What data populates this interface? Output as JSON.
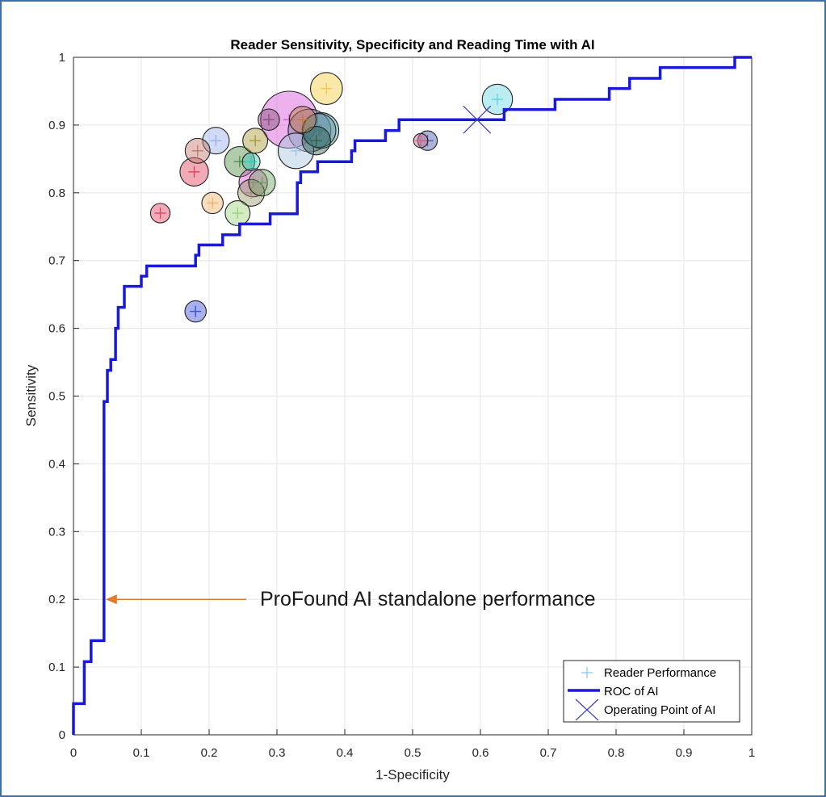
{
  "chart_data": {
    "type": "scatter",
    "title": "Reader Sensitivity, Specificity and Reading Time with AI",
    "xlabel": "1-Specificity",
    "ylabel": "Sensitivity",
    "xlim": [
      0,
      1
    ],
    "ylim": [
      0,
      1
    ],
    "xticks": [
      "0",
      "0.1",
      "0.2",
      "0.3",
      "0.4",
      "0.5",
      "0.6",
      "0.7",
      "0.8",
      "0.9",
      "1"
    ],
    "yticks": [
      "0",
      "0.1",
      "0.2",
      "0.3",
      "0.4",
      "0.5",
      "0.6",
      "0.7",
      "0.8",
      "0.9",
      "1"
    ],
    "grid": true,
    "legend": {
      "position": "bottom-right",
      "entries": [
        "Reader Performance",
        "ROC of AI",
        "Operating Point of AI"
      ]
    },
    "annotation": {
      "text": "ProFound AI standalone performance",
      "arrow_to": [
        0.045,
        0.2
      ],
      "color": "#e07b2b"
    },
    "roc_color": "#1919d9",
    "roc": [
      [
        0,
        0
      ],
      [
        0,
        0.046
      ],
      [
        0.016,
        0.046
      ],
      [
        0.016,
        0.108
      ],
      [
        0.026,
        0.108
      ],
      [
        0.026,
        0.139
      ],
      [
        0.045,
        0.139
      ],
      [
        0.045,
        0.492
      ],
      [
        0.05,
        0.492
      ],
      [
        0.05,
        0.538
      ],
      [
        0.055,
        0.538
      ],
      [
        0.055,
        0.554
      ],
      [
        0.062,
        0.554
      ],
      [
        0.062,
        0.6
      ],
      [
        0.066,
        0.6
      ],
      [
        0.066,
        0.631
      ],
      [
        0.075,
        0.631
      ],
      [
        0.075,
        0.662
      ],
      [
        0.1,
        0.662
      ],
      [
        0.1,
        0.677
      ],
      [
        0.108,
        0.677
      ],
      [
        0.108,
        0.692
      ],
      [
        0.18,
        0.692
      ],
      [
        0.18,
        0.708
      ],
      [
        0.185,
        0.708
      ],
      [
        0.185,
        0.723
      ],
      [
        0.22,
        0.723
      ],
      [
        0.22,
        0.738
      ],
      [
        0.245,
        0.738
      ],
      [
        0.245,
        0.754
      ],
      [
        0.29,
        0.754
      ],
      [
        0.29,
        0.769
      ],
      [
        0.33,
        0.769
      ],
      [
        0.33,
        0.815
      ],
      [
        0.335,
        0.815
      ],
      [
        0.335,
        0.831
      ],
      [
        0.36,
        0.831
      ],
      [
        0.36,
        0.846
      ],
      [
        0.41,
        0.846
      ],
      [
        0.41,
        0.862
      ],
      [
        0.415,
        0.862
      ],
      [
        0.415,
        0.877
      ],
      [
        0.46,
        0.877
      ],
      [
        0.46,
        0.892
      ],
      [
        0.48,
        0.892
      ],
      [
        0.48,
        0.908
      ],
      [
        0.635,
        0.908
      ],
      [
        0.635,
        0.923
      ],
      [
        0.71,
        0.923
      ],
      [
        0.71,
        0.938
      ],
      [
        0.79,
        0.938
      ],
      [
        0.79,
        0.954
      ],
      [
        0.82,
        0.954
      ],
      [
        0.82,
        0.969
      ],
      [
        0.865,
        0.969
      ],
      [
        0.865,
        0.985
      ],
      [
        0.975,
        0.985
      ],
      [
        0.975,
        1.0
      ],
      [
        1.0,
        1.0
      ]
    ],
    "operating_point": {
      "x": 0.595,
      "y": 0.908
    },
    "readers": [
      {
        "x": 0.128,
        "y": 0.77,
        "size": 1.1,
        "color": "#e3435f"
      },
      {
        "x": 0.18,
        "y": 0.625,
        "size": 1.2,
        "color": "#3d4fd6"
      },
      {
        "x": 0.178,
        "y": 0.831,
        "size": 1.6,
        "color": "#e3435f"
      },
      {
        "x": 0.183,
        "y": 0.862,
        "size": 1.4,
        "color": "#c07a6a"
      },
      {
        "x": 0.205,
        "y": 0.785,
        "size": 1.2,
        "color": "#f2b36b"
      },
      {
        "x": 0.21,
        "y": 0.877,
        "size": 1.5,
        "color": "#9ab0e8"
      },
      {
        "x": 0.242,
        "y": 0.77,
        "size": 1.4,
        "color": "#9bd27a"
      },
      {
        "x": 0.245,
        "y": 0.846,
        "size": 1.7,
        "color": "#4f8f45"
      },
      {
        "x": 0.262,
        "y": 0.846,
        "size": 1.0,
        "color": "#3fc7b8"
      },
      {
        "x": 0.262,
        "y": 0.8,
        "size": 1.5,
        "color": "#9a9a6a"
      },
      {
        "x": 0.265,
        "y": 0.815,
        "size": 1.6,
        "color": "#d95bd0"
      },
      {
        "x": 0.268,
        "y": 0.877,
        "size": 1.4,
        "color": "#a89a3a"
      },
      {
        "x": 0.278,
        "y": 0.815,
        "size": 1.5,
        "color": "#6da35e"
      },
      {
        "x": 0.288,
        "y": 0.908,
        "size": 1.2,
        "color": "#8a4f7a"
      },
      {
        "x": 0.318,
        "y": 0.908,
        "size": 3.2,
        "color": "#d655d6"
      },
      {
        "x": 0.328,
        "y": 0.862,
        "size": 2.0,
        "color": "#a6c6e0"
      },
      {
        "x": 0.338,
        "y": 0.908,
        "size": 1.5,
        "color": "#c27a3f"
      },
      {
        "x": 0.348,
        "y": 0.892,
        "size": 2.4,
        "color": "#8a7ab2"
      },
      {
        "x": 0.358,
        "y": 0.877,
        "size": 1.6,
        "color": "#2f5f4f"
      },
      {
        "x": 0.362,
        "y": 0.892,
        "size": 1.9,
        "color": "#5a8aa0"
      },
      {
        "x": 0.365,
        "y": 0.892,
        "size": 2.0,
        "color": "#4ea6a6"
      },
      {
        "x": 0.373,
        "y": 0.954,
        "size": 1.8,
        "color": "#f2cd3c"
      },
      {
        "x": 0.512,
        "y": 0.877,
        "size": 0.8,
        "color": "#c46a8a"
      },
      {
        "x": 0.522,
        "y": 0.877,
        "size": 1.1,
        "color": "#4a5aa6"
      },
      {
        "x": 0.625,
        "y": 0.938,
        "size": 1.7,
        "color": "#66d4e0"
      }
    ]
  }
}
